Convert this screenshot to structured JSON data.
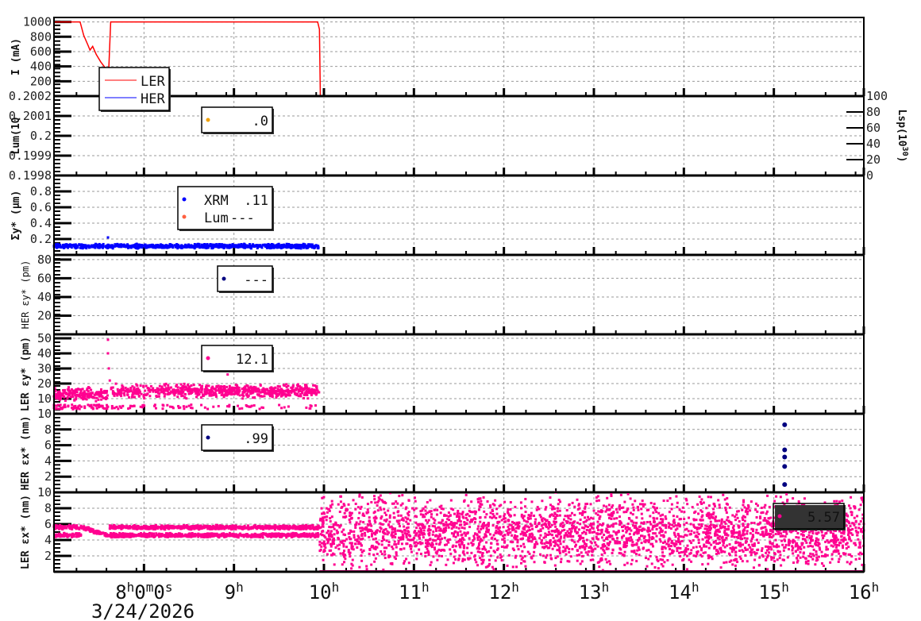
{
  "chart_data": [
    {
      "type": "line",
      "ylabel": "I (mA)",
      "ylim": [
        0,
        1060
      ],
      "yticks": [
        "1000",
        "800",
        "600",
        "400",
        "200"
      ],
      "ytick_values": [
        1000,
        800,
        600,
        400,
        200
      ],
      "legend": [
        {
          "name": "LER",
          "color": "#ff0000",
          "marker": "line"
        },
        {
          "name": "HER",
          "color": "#0000ff",
          "marker": "line"
        }
      ],
      "series": [
        {
          "name": "LER",
          "color": "#ff0000",
          "x": [
            7.0,
            7.29,
            7.33,
            7.38,
            7.4,
            7.43,
            7.47,
            7.52,
            7.57,
            7.6,
            7.61,
            7.63,
            9.93,
            9.95,
            9.96
          ],
          "y": [
            1000,
            1000,
            820,
            680,
            620,
            670,
            560,
            460,
            380,
            330,
            400,
            1000,
            1000,
            900,
            0
          ]
        },
        {
          "name": "HER",
          "color": "#0000ff",
          "x": [
            7.0,
            16.0
          ],
          "y": [
            0,
            0
          ]
        }
      ]
    },
    {
      "type": "scatter",
      "ylabel": "Lum(10",
      "ylim": [
        0.1998,
        0.2002
      ],
      "yticks": [
        "0.2002",
        "0.2001",
        "0.2",
        "0.1999",
        "0.1998"
      ],
      "ytick_values": [
        0.2002,
        0.2001,
        0.2,
        0.1999,
        0.1998
      ],
      "y2label": "Lsp(10",
      "y2label_sup": "30",
      "y2label_end": ")",
      "y2lim": [
        0,
        100
      ],
      "y2ticks": [
        "100",
        "80",
        "60",
        "40",
        "20",
        "0"
      ],
      "y2tick_values": [
        100,
        80,
        60,
        40,
        20,
        0
      ],
      "legend": [
        {
          "name": "",
          "value": ".0",
          "color": "#f0a000"
        }
      ],
      "series": []
    },
    {
      "type": "scatter",
      "ylabel": "Σy* (μm)",
      "ylim": [
        0,
        1.0
      ],
      "yticks": [
        "0.8",
        "0.6",
        "0.4",
        "0.2"
      ],
      "ytick_values": [
        0.8,
        0.6,
        0.4,
        0.2
      ],
      "legend": [
        {
          "name": "XRM",
          "value": ".11",
          "color": "#0000ff"
        },
        {
          "name": "Lum",
          "value": "---",
          "color": "#ff6040"
        }
      ],
      "series": [
        {
          "name": "XRM",
          "color": "#0000ff",
          "bands": [
            {
              "x": [
                7.0,
                9.95
              ],
              "center": 0.11,
              "spread": 0.03
            }
          ],
          "spikes": [
            {
              "x": 7.6,
              "y": 0.22
            }
          ]
        }
      ]
    },
    {
      "type": "scatter",
      "ylabel": "HER εy* (pm)",
      "ylim": [
        0,
        85
      ],
      "yticks": [
        "80",
        "60",
        "40",
        "20"
      ],
      "ytick_values": [
        80,
        60,
        40,
        20
      ],
      "legend": [
        {
          "name": "",
          "value": "---",
          "color": "#000080"
        }
      ],
      "series": []
    },
    {
      "type": "scatter",
      "ylabel": "LER εy* (pm)",
      "ylim": [
        0,
        52.6
      ],
      "yticks": [
        "50",
        "40",
        "30",
        "20",
        "10"
      ],
      "ytick_values": [
        50,
        40,
        30,
        20,
        10
      ],
      "legend": [
        {
          "name": "",
          "value": "12.1",
          "color": "#ff0090"
        }
      ],
      "series": [
        {
          "color": "#ff0090",
          "bands": [
            {
              "x": [
                7.0,
                7.6
              ],
              "center": 13,
              "spread": 5
            },
            {
              "x": [
                7.63,
                9.95
              ],
              "center": 15,
              "spread": 5
            }
          ],
          "spikes": [
            {
              "x": 7.6,
              "y": 49
            },
            {
              "x": 7.6,
              "y": 40
            },
            {
              "x": 7.61,
              "y": 30
            },
            {
              "x": 7.62,
              "y": 22
            },
            {
              "x": 8.93,
              "y": 26
            }
          ]
        }
      ]
    },
    {
      "type": "scatter",
      "ylabel": "HER εx* (nm)",
      "ylim": [
        0,
        10
      ],
      "yticks": [
        "10",
        "8",
        "6",
        "4",
        "2"
      ],
      "ytick_values": [
        10,
        8,
        6,
        4,
        2
      ],
      "legend": [
        {
          "name": "",
          "value": ".99",
          "color": "#000080"
        }
      ],
      "series": [
        {
          "color": "#000080",
          "points": {
            "x": [
              15.12,
              15.12,
              15.12,
              15.12,
              15.12
            ],
            "y": [
              8.6,
              5.4,
              4.5,
              3.3,
              1.0
            ]
          }
        }
      ]
    },
    {
      "type": "scatter",
      "ylabel": "LER εx* (nm)",
      "ylim": [
        0,
        10
      ],
      "yticks": [
        "10",
        "8",
        "6",
        "4",
        "2"
      ],
      "ytick_values": [
        10,
        8,
        6,
        4,
        2
      ],
      "legend": [
        {
          "name": "",
          "value": "5.57",
          "color": "#ff0090"
        }
      ],
      "series": [
        {
          "color": "#ff0090",
          "bands": [
            {
              "x": [
                7.0,
                9.95
              ],
              "center": 5.6,
              "spread": 0.3
            },
            {
              "x": [
                7.0,
                9.95
              ],
              "center": 4.6,
              "spread": 0.3
            },
            {
              "x": [
                9.95,
                16.0
              ],
              "center": 5,
              "spread": 5
            }
          ]
        }
      ]
    }
  ],
  "xaxis": {
    "range": [
      7,
      16
    ],
    "ticks": [
      {
        "v": 8,
        "h": "8",
        "rest": [
          [
            "h"
          ],
          [
            "0"
          ],
          [
            "m"
          ],
          [
            "0"
          ],
          [
            "s"
          ]
        ]
      },
      {
        "v": 9,
        "h": "9"
      },
      {
        "v": 10,
        "h": "10"
      },
      {
        "v": 11,
        "h": "11"
      },
      {
        "v": 12,
        "h": "12"
      },
      {
        "v": 13,
        "h": "13"
      },
      {
        "v": 14,
        "h": "14"
      },
      {
        "v": 15,
        "h": "15"
      },
      {
        "v": 16,
        "h": "16"
      }
    ],
    "date": "3/24/2026"
  }
}
